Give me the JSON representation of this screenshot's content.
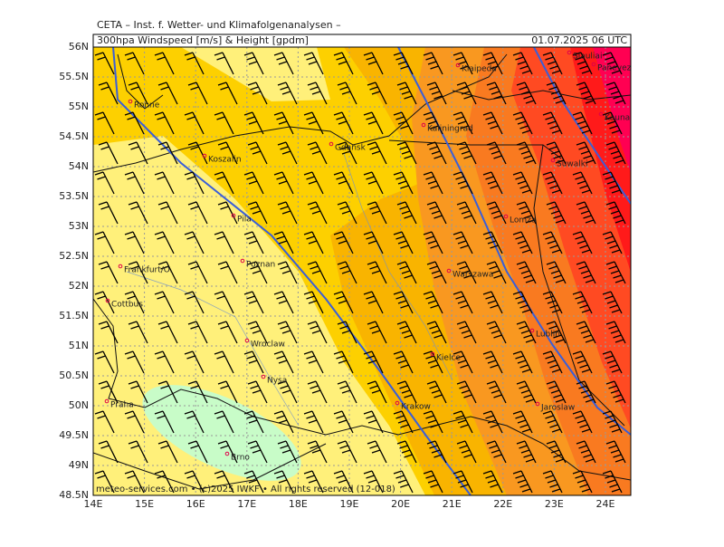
{
  "header": {
    "institute": "CETA – Inst. f. Wetter- und Klimafolgenanalysen –",
    "title": "300hpa Windspeed [m/s] & Height [gpdm]",
    "valid_time": "01.07.2025 06 UTC"
  },
  "map": {
    "lat_labels": [
      "56N",
      "55.5N",
      "55N",
      "54.5N",
      "54N",
      "53.5N",
      "53N",
      "52.5N",
      "52N",
      "51.5N",
      "51N",
      "50.5N",
      "50N",
      "49.5N",
      "49N",
      "48.5N"
    ],
    "lon_labels": [
      "14E",
      "15E",
      "16E",
      "17E",
      "18E",
      "19E",
      "20E",
      "21E",
      "22E",
      "23E",
      "24E"
    ],
    "cities": [
      "Ronne",
      "Koszalin",
      "Gdansk",
      "Klaipeda",
      "Kaliningrad",
      "Siauliai",
      "Panevezys",
      "Kaunas",
      "Suwalki",
      "Pila",
      "Lomza",
      "Poznan",
      "Frankfurt/O.",
      "Warszawa",
      "Cottbus",
      "Lublin",
      "Wroclaw",
      "Kielce",
      "Nysa",
      "Krakow",
      "Jaroslaw",
      "Praha",
      "Brno"
    ]
  },
  "footer": "meteo-services.com • (c)2025 IWKF • All rights reserved (12-018)"
}
